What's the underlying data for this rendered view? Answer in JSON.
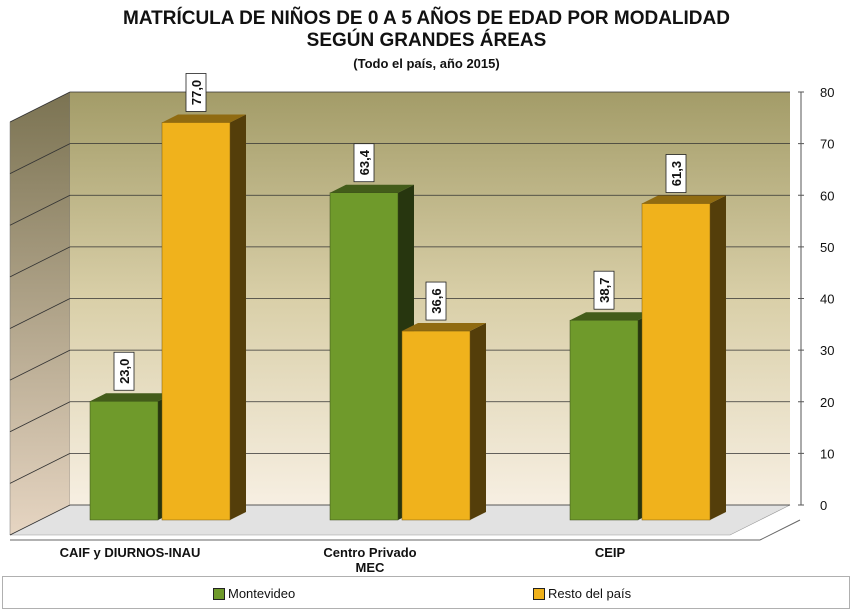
{
  "chart_data": {
    "type": "bar3d",
    "title": "MATRÍCULA DE NIÑOS DE 0 A 5 AÑOS DE EDAD POR MODALIDAD\nSEGÚN GRANDES ÁREAS",
    "subtitle": "(Todo el país, año 2015)",
    "categories": [
      "CAIF y DIURNOS-INAU",
      "Centro Privado\nMEC",
      "CEIP"
    ],
    "series": [
      {
        "name": "Montevideo",
        "color": "#6f9a2b",
        "values": [
          23.0,
          63.4,
          38.7
        ],
        "value_labels": [
          "23,0",
          "63,4",
          "38,7"
        ]
      },
      {
        "name": "Resto del país",
        "color": "#f0b21c",
        "values": [
          77.0,
          36.6,
          61.3
        ],
        "value_labels": [
          "77,0",
          "36,6",
          "61,3"
        ]
      }
    ],
    "ylim": [
      0,
      80
    ],
    "yticks": [
      0,
      10,
      20,
      30,
      40,
      50,
      60,
      70,
      80
    ],
    "grid": true,
    "legend": "bottom"
  }
}
